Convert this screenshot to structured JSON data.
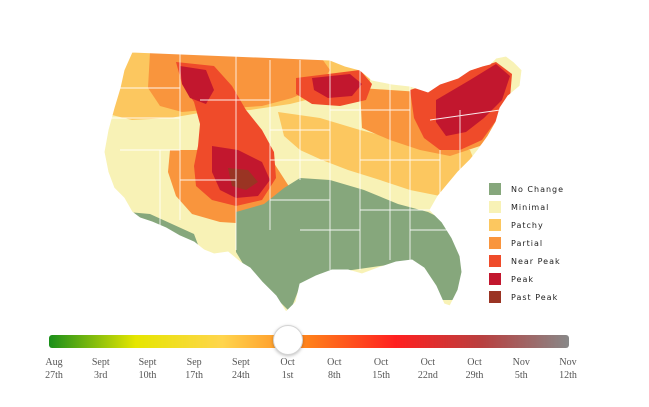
{
  "legend": {
    "items": [
      {
        "label": "No Change",
        "color": "#86a77c"
      },
      {
        "label": "Minimal",
        "color": "#f8f2b6"
      },
      {
        "label": "Patchy",
        "color": "#fcc75f"
      },
      {
        "label": "Partial",
        "color": "#f9953d"
      },
      {
        "label": "Near Peak",
        "color": "#ef4b2a"
      },
      {
        "label": "Peak",
        "color": "#c2172e"
      },
      {
        "label": "Past Peak",
        "color": "#9a3423"
      }
    ]
  },
  "slider": {
    "gradient": [
      "#1a8f1a",
      "#e6e600",
      "#ffd54d",
      "#ff7f1a",
      "#ff2020",
      "#b84040",
      "#888888"
    ],
    "selected_date": "Oct 1st",
    "ticks": [
      {
        "line1": "Aug",
        "line2": "27th"
      },
      {
        "line1": "Sept",
        "line2": "3rd"
      },
      {
        "line1": "Sept",
        "line2": "10th"
      },
      {
        "line1": "Sep",
        "line2": "17th"
      },
      {
        "line1": "Sept",
        "line2": "24th"
      },
      {
        "line1": "Oct",
        "line2": "1st"
      },
      {
        "line1": "Oct",
        "line2": "8th"
      },
      {
        "line1": "Oct",
        "line2": "15th"
      },
      {
        "line1": "Oct",
        "line2": "22nd"
      },
      {
        "line1": "Oct",
        "line2": "29th"
      },
      {
        "line1": "Nov",
        "line2": "5th"
      },
      {
        "line1": "Nov",
        "line2": "12th"
      }
    ]
  }
}
